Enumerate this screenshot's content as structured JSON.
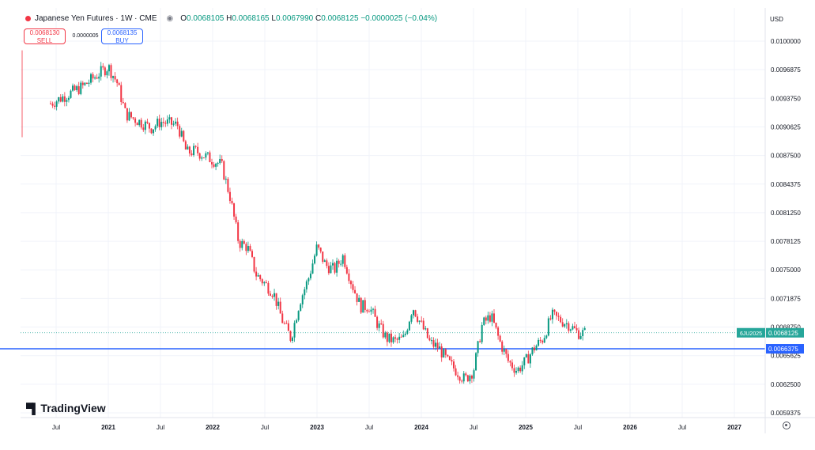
{
  "legend": {
    "symbol": "Japanese Yen Futures · 1W · CME",
    "eye_icon": "eye-icon",
    "open_label": "O",
    "open": "0.0068105",
    "high_label": "H",
    "high": "0.0068165",
    "low_label": "L",
    "low": "0.0067990",
    "close_label": "C",
    "close": "0.0068125",
    "change": "−0.0000025 (−0.04%)"
  },
  "trade": {
    "sell_price": "0.0068130",
    "sell_label": "SELL",
    "spread": "0.0000005",
    "buy_price": "0.0068135",
    "buy_label": "BUY"
  },
  "currency": "USD",
  "brand": "TradingView",
  "colors": {
    "up": "#089981",
    "down": "#f23645",
    "hline": "#2962ff",
    "last": "#26a69a"
  },
  "chart_data": {
    "type": "candlestick",
    "y_ticks": [
      "0.0100000",
      "0.0096875",
      "0.0093750",
      "0.0090625",
      "0.0087500",
      "0.0084375",
      "0.0081250",
      "0.0078125",
      "0.0075000",
      "0.0071875",
      "0.0068750",
      "0.0065625",
      "0.0062500",
      "0.0059375"
    ],
    "x_ticks": [
      "Jul",
      "2021",
      "Jul",
      "2022",
      "Jul",
      "2023",
      "Jul",
      "2024",
      "Jul",
      "2025",
      "Jul",
      "2026",
      "Jul",
      "2027"
    ],
    "ylim": [
      0.0059,
      0.0101
    ],
    "last_tag": "6JU2025",
    "last_value": "0.0068125",
    "hline_value": "0.0066375",
    "anchors": [
      [
        "2020-06",
        0.0093
      ],
      [
        "2020-07",
        0.00935
      ],
      [
        "2020-08",
        0.0094
      ],
      [
        "2020-10",
        0.0095
      ],
      [
        "2020-12",
        0.00965
      ],
      [
        "2021-01",
        0.00972
      ],
      [
        "2021-02",
        0.00955
      ],
      [
        "2021-03",
        0.0092
      ],
      [
        "2021-04",
        0.00915
      ],
      [
        "2021-05",
        0.0091
      ],
      [
        "2021-06",
        0.00905
      ],
      [
        "2021-07",
        0.00912
      ],
      [
        "2021-08",
        0.0091
      ],
      [
        "2021-09",
        0.00908
      ],
      [
        "2021-10",
        0.00878
      ],
      [
        "2021-11",
        0.0088
      ],
      [
        "2021-12",
        0.00875
      ],
      [
        "2022-01",
        0.0087
      ],
      [
        "2022-02",
        0.00865
      ],
      [
        "2022-03",
        0.0083
      ],
      [
        "2022-04",
        0.0078
      ],
      [
        "2022-05",
        0.00775
      ],
      [
        "2022-06",
        0.00745
      ],
      [
        "2022-07",
        0.00735
      ],
      [
        "2022-08",
        0.00725
      ],
      [
        "2022-09",
        0.00695
      ],
      [
        "2022-10",
        0.00675
      ],
      [
        "2022-11",
        0.00715
      ],
      [
        "2022-12",
        0.0074
      ],
      [
        "2023-01",
        0.00775
      ],
      [
        "2023-02",
        0.00755
      ],
      [
        "2023-03",
        0.0075
      ],
      [
        "2023-04",
        0.00765
      ],
      [
        "2023-05",
        0.00735
      ],
      [
        "2023-06",
        0.0071
      ],
      [
        "2023-07",
        0.0071
      ],
      [
        "2023-08",
        0.0069
      ],
      [
        "2023-09",
        0.00675
      ],
      [
        "2023-10",
        0.00672
      ],
      [
        "2023-11",
        0.00675
      ],
      [
        "2023-12",
        0.0071
      ],
      [
        "2024-01",
        0.0069
      ],
      [
        "2024-02",
        0.0067
      ],
      [
        "2024-03",
        0.00665
      ],
      [
        "2024-04",
        0.0065
      ],
      [
        "2024-05",
        0.0064
      ],
      [
        "2024-06",
        0.0063
      ],
      [
        "2024-07",
        0.0064
      ],
      [
        "2024-08",
        0.0069
      ],
      [
        "2024-09",
        0.007
      ],
      [
        "2024-10",
        0.00672
      ],
      [
        "2024-11",
        0.0065
      ],
      [
        "2024-12",
        0.0064
      ],
      [
        "2025-01",
        0.0065
      ],
      [
        "2025-02",
        0.00665
      ],
      [
        "2025-03",
        0.00675
      ],
      [
        "2025-04",
        0.007
      ],
      [
        "2025-05",
        0.00695
      ],
      [
        "2025-06",
        0.0069
      ],
      [
        "2025-07",
        0.00681
      ]
    ]
  }
}
